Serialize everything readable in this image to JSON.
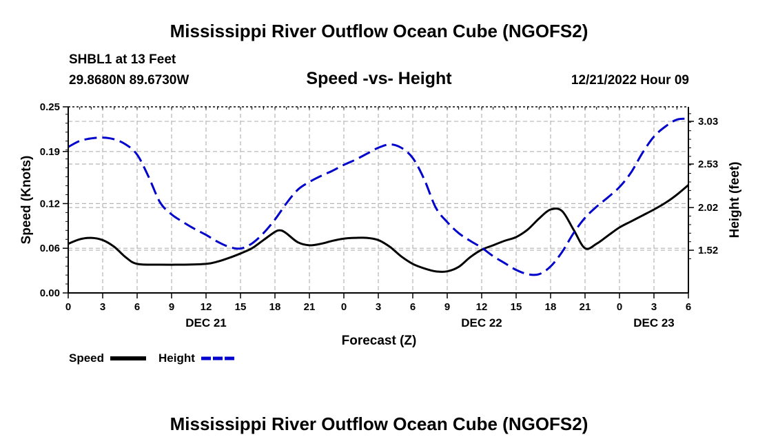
{
  "header": {
    "title": "Mississippi River Outflow Ocean Cube (NGOFS2)",
    "station": "SHBL1 at 13 Feet",
    "coords": "29.8680N  89.6730W",
    "subtitle": "Speed -vs- Height",
    "datetime": "12/21/2022 Hour 09"
  },
  "footer": {
    "title": "Mississippi River Outflow Ocean Cube (NGOFS2)"
  },
  "legend": {
    "speed_label": "Speed",
    "height_label": "Height"
  },
  "colors": {
    "speed": "#000000",
    "height": "#0000cc",
    "grid": "#b4b4b4"
  },
  "chart_data": {
    "type": "line",
    "title": "Speed -vs- Height",
    "xlabel": "Forecast (Z)",
    "ylabel": "Speed (Knots)",
    "y2label": "Height (feet)",
    "x_range": [
      0,
      54
    ],
    "x_ticks": [
      {
        "x": 0,
        "label": "0"
      },
      {
        "x": 3,
        "label": "3"
      },
      {
        "x": 6,
        "label": "6"
      },
      {
        "x": 9,
        "label": "9"
      },
      {
        "x": 12,
        "label": "12"
      },
      {
        "x": 15,
        "label": "15"
      },
      {
        "x": 18,
        "label": "18"
      },
      {
        "x": 21,
        "label": "21"
      },
      {
        "x": 24,
        "label": "0"
      },
      {
        "x": 27,
        "label": "3"
      },
      {
        "x": 30,
        "label": "6"
      },
      {
        "x": 33,
        "label": "9"
      },
      {
        "x": 36,
        "label": "12"
      },
      {
        "x": 39,
        "label": "15"
      },
      {
        "x": 42,
        "label": "18"
      },
      {
        "x": 45,
        "label": "21"
      },
      {
        "x": 48,
        "label": "0"
      },
      {
        "x": 51,
        "label": "3"
      },
      {
        "x": 54,
        "label": "6"
      }
    ],
    "date_labels": [
      {
        "x": 12,
        "label": "DEC 21"
      },
      {
        "x": 36,
        "label": "DEC 22"
      },
      {
        "x": 51,
        "label": "DEC 23"
      }
    ],
    "y_left": {
      "range": [
        0,
        0.25
      ],
      "ticks": [
        0.0,
        0.06,
        0.12,
        0.19,
        0.25
      ],
      "tick_labels": [
        "0.00",
        "0.06",
        "0.12",
        "0.19",
        "0.25"
      ]
    },
    "y_right": {
      "range": [
        1.02,
        3.2
      ],
      "ticks": [
        1.52,
        2.02,
        2.53,
        3.03
      ],
      "tick_labels": [
        "1.52",
        "2.02",
        "2.53",
        "3.03"
      ]
    },
    "series": [
      {
        "name": "Speed",
        "axis": "left",
        "style": "solid",
        "x": [
          0,
          1,
          2,
          3,
          4,
          5,
          6,
          8,
          10,
          12,
          13,
          14,
          15,
          16,
          17,
          18,
          18.5,
          19,
          20,
          21,
          22,
          23,
          24,
          25,
          26,
          27,
          28,
          29,
          30,
          31,
          32,
          33,
          34,
          35,
          36,
          37,
          38,
          39,
          40,
          41,
          42,
          43,
          44,
          45,
          46,
          47,
          48,
          49,
          50,
          51,
          52,
          53,
          54
        ],
        "values": [
          0.066,
          0.072,
          0.074,
          0.071,
          0.062,
          0.048,
          0.039,
          0.038,
          0.038,
          0.039,
          0.042,
          0.047,
          0.053,
          0.06,
          0.071,
          0.082,
          0.084,
          0.08,
          0.068,
          0.064,
          0.066,
          0.07,
          0.073,
          0.074,
          0.074,
          0.071,
          0.062,
          0.049,
          0.039,
          0.033,
          0.029,
          0.029,
          0.035,
          0.048,
          0.058,
          0.064,
          0.07,
          0.075,
          0.085,
          0.1,
          0.112,
          0.11,
          0.085,
          0.06,
          0.066,
          0.077,
          0.088,
          0.096,
          0.104,
          0.112,
          0.121,
          0.132,
          0.145
        ]
      },
      {
        "name": "Height",
        "axis": "right",
        "style": "dashed",
        "x": [
          0,
          1,
          2,
          3,
          4,
          5,
          6,
          7,
          8,
          9,
          10,
          11,
          12,
          13,
          14,
          15,
          16,
          17,
          18,
          19,
          20,
          21,
          22,
          23,
          24,
          25,
          26,
          27,
          28,
          29,
          30,
          31,
          32,
          33,
          34,
          35,
          36,
          37,
          38,
          39,
          40,
          41,
          42,
          43,
          44,
          45,
          46,
          47,
          48,
          49,
          50,
          51,
          52,
          53,
          54
        ],
        "values": [
          2.73,
          2.8,
          2.83,
          2.84,
          2.82,
          2.76,
          2.64,
          2.38,
          2.08,
          1.94,
          1.85,
          1.77,
          1.7,
          1.62,
          1.56,
          1.54,
          1.6,
          1.72,
          1.88,
          2.07,
          2.23,
          2.32,
          2.39,
          2.45,
          2.52,
          2.58,
          2.65,
          2.72,
          2.76,
          2.72,
          2.6,
          2.35,
          2.02,
          1.85,
          1.72,
          1.63,
          1.55,
          1.45,
          1.37,
          1.29,
          1.24,
          1.24,
          1.33,
          1.5,
          1.72,
          1.9,
          2.03,
          2.14,
          2.26,
          2.43,
          2.66,
          2.85,
          2.97,
          3.05,
          3.06
        ]
      }
    ]
  }
}
